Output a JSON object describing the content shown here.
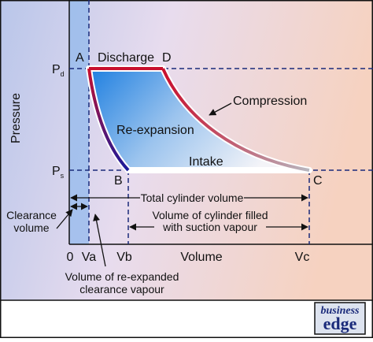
{
  "axes": {
    "y_label": "Pressure",
    "x_label": "Volume"
  },
  "pressure_levels": [
    {
      "label": "P",
      "sub": "d"
    },
    {
      "label": "P",
      "sub": "s"
    }
  ],
  "points": [
    "A",
    "B",
    "C",
    "D"
  ],
  "processes": [
    "Discharge",
    "Compression",
    "Intake",
    "Re-expansion"
  ],
  "volume_ticks": [
    "0",
    "Va",
    "Vb",
    "Vc"
  ],
  "annotations": {
    "total": "Total cylinder volume",
    "filled": [
      "Volume of cylinder filled",
      "with suction vapour"
    ],
    "clearance": [
      "Clearance",
      "volume"
    ],
    "reexpanded": [
      "Volume of re-expanded",
      "clearance vapour"
    ]
  },
  "logo": [
    "business",
    "edge"
  ]
}
